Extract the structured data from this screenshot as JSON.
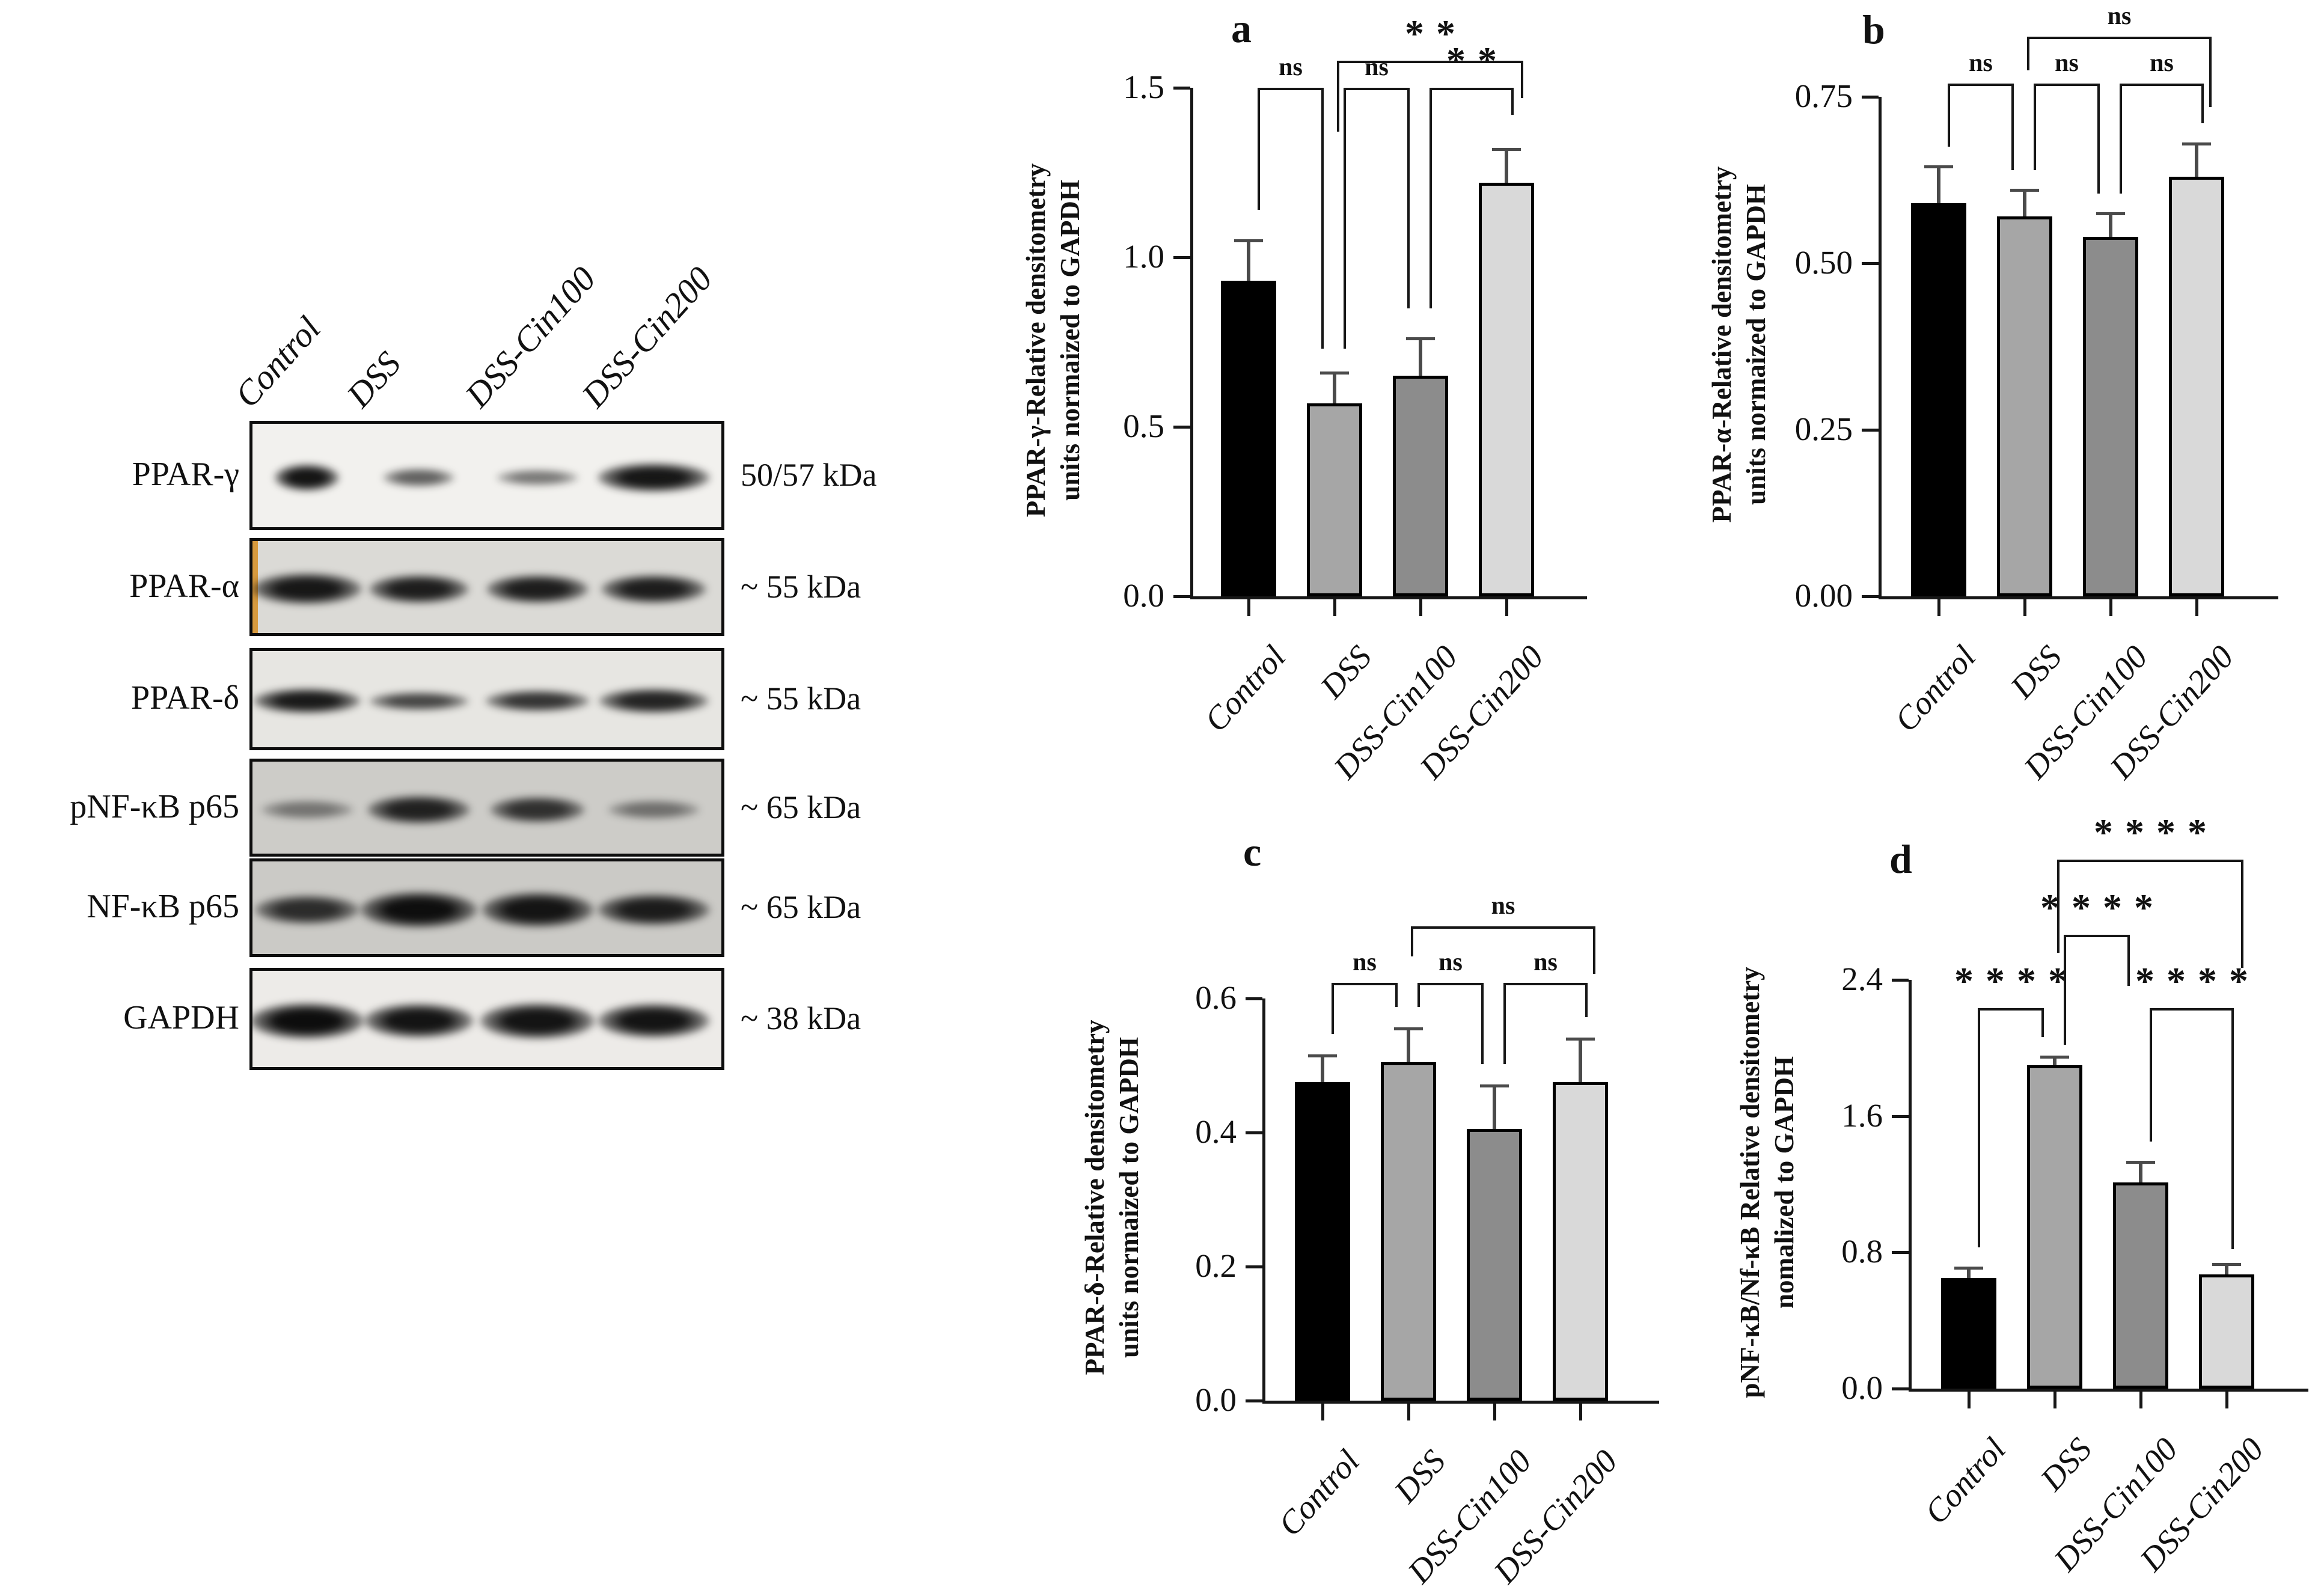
{
  "figure": {
    "background": "#ffffff",
    "axis_color": "#161616",
    "error_bar_color": "#4a4a4a",
    "bar_colors": [
      "#000000",
      "#a6a6a6",
      "#8c8c8c",
      "#d9d9d9"
    ]
  },
  "blot": {
    "lane_labels": [
      "Control",
      "DSS",
      "DSS-Cin100",
      "DSS-Cin200"
    ],
    "rows": [
      {
        "protein": "PPAR-γ",
        "kda": "50/57 kDa",
        "bg": "#f2f1ee",
        "stripe": null,
        "bands": [
          {
            "d": 0.95,
            "w": 0.52,
            "t": 0.4
          },
          {
            "d": 0.62,
            "w": 0.58,
            "t": 0.28
          },
          {
            "d": 0.52,
            "w": 0.66,
            "t": 0.24
          },
          {
            "d": 0.94,
            "w": 0.9,
            "t": 0.44
          }
        ]
      },
      {
        "protein": "PPAR-α",
        "kda": "~ 55 kDa",
        "bg": "#dbdad6",
        "stripe": "#d79a3e",
        "bands": [
          {
            "d": 0.93,
            "w": 0.88,
            "t": 0.52
          },
          {
            "d": 0.9,
            "w": 0.8,
            "t": 0.48
          },
          {
            "d": 0.9,
            "w": 0.82,
            "t": 0.48
          },
          {
            "d": 0.9,
            "w": 0.84,
            "t": 0.48
          }
        ]
      },
      {
        "protein": "PPAR-δ",
        "kda": "~ 55 kDa",
        "bg": "#e7e6e2",
        "stripe": null,
        "bands": [
          {
            "d": 0.92,
            "w": 0.86,
            "t": 0.4
          },
          {
            "d": 0.72,
            "w": 0.8,
            "t": 0.3
          },
          {
            "d": 0.8,
            "w": 0.84,
            "t": 0.34
          },
          {
            "d": 0.88,
            "w": 0.88,
            "t": 0.4
          }
        ]
      },
      {
        "protein": "pNF-κB p65",
        "kda": "~ 65 kDa",
        "bg": "#cdccc8",
        "stripe": null,
        "bands": [
          {
            "d": 0.45,
            "w": 0.74,
            "t": 0.32
          },
          {
            "d": 0.88,
            "w": 0.82,
            "t": 0.48
          },
          {
            "d": 0.8,
            "w": 0.76,
            "t": 0.44
          },
          {
            "d": 0.48,
            "w": 0.74,
            "t": 0.32
          }
        ]
      },
      {
        "protein": "NF-κB p65",
        "kda": "~ 65 kDa",
        "bg": "#cbcac6",
        "stripe": null,
        "bands": [
          {
            "d": 0.82,
            "w": 0.84,
            "t": 0.48
          },
          {
            "d": 0.97,
            "w": 0.94,
            "t": 0.6
          },
          {
            "d": 0.94,
            "w": 0.9,
            "t": 0.58
          },
          {
            "d": 0.9,
            "w": 0.9,
            "t": 0.52
          }
        ]
      },
      {
        "protein": "GAPDH",
        "kda": "~ 38 kDa",
        "bg": "#edebe8",
        "stripe": null,
        "bands": [
          {
            "d": 0.98,
            "w": 0.92,
            "t": 0.58
          },
          {
            "d": 0.95,
            "w": 0.88,
            "t": 0.55
          },
          {
            "d": 0.95,
            "w": 0.92,
            "t": 0.58
          },
          {
            "d": 0.95,
            "w": 0.9,
            "t": 0.55
          }
        ]
      }
    ]
  },
  "chart_data": [
    {
      "id": "a",
      "type": "bar",
      "panel_label": "a",
      "categories": [
        "Control",
        "DSS",
        "DSS-Cin100",
        "DSS-Cin200"
      ],
      "values": [
        0.93,
        0.57,
        0.65,
        1.22
      ],
      "errors": [
        0.12,
        0.09,
        0.11,
        0.1
      ],
      "ylabel_lines": [
        "PPAR-γ-Relative densitometry",
        "units normaized to GAPDH"
      ],
      "ylim": [
        0,
        1.5
      ],
      "yticks": [
        0,
        0.5,
        1.0,
        1.5
      ],
      "ytick_labels": [
        "0.0",
        "0.5",
        "1.0",
        "1.5"
      ],
      "legend": null,
      "grid": false,
      "significance": [
        {
          "i": 0,
          "j": 1,
          "label": "ns",
          "y": 1.5,
          "di": 1.14,
          "dj": 0.73,
          "oi": 15,
          "oj": -18
        },
        {
          "i": 1,
          "j": 2,
          "label": "ns",
          "y": 1.5,
          "di": 0.73,
          "dj": 0.85,
          "oi": 15,
          "oj": -18
        },
        {
          "i": 2,
          "j": 3,
          "label": "**",
          "y": 1.5,
          "di": 0.85,
          "dj": 1.42,
          "oi": 15,
          "oj": 12
        },
        {
          "i": 1,
          "j": 3,
          "label": "**",
          "y": 1.58,
          "di": 1.37,
          "dj": 1.47,
          "oi": 4,
          "oj": 28
        }
      ]
    },
    {
      "id": "b",
      "type": "bar",
      "panel_label": "b",
      "categories": [
        "Control",
        "DSS",
        "DSS-Cin100",
        "DSS-Cin200"
      ],
      "values": [
        0.59,
        0.57,
        0.54,
        0.63
      ],
      "errors": [
        0.055,
        0.04,
        0.035,
        0.05
      ],
      "ylabel_lines": [
        "PPAR-α-Relative densitometry",
        "units normaized to GAPDH"
      ],
      "ylim": [
        0,
        0.75
      ],
      "yticks": [
        0,
        0.25,
        0.5,
        0.75
      ],
      "ytick_labels": [
        "0.00",
        "0.25",
        "0.50",
        "0.75"
      ],
      "legend": null,
      "grid": false,
      "significance": [
        {
          "i": 0,
          "j": 1,
          "label": "ns",
          "y": 0.77,
          "di": 0.675,
          "dj": 0.64,
          "oi": 15,
          "oj": -18
        },
        {
          "i": 1,
          "j": 2,
          "label": "ns",
          "y": 0.77,
          "di": 0.64,
          "dj": 0.605,
          "oi": 15,
          "oj": -18
        },
        {
          "i": 2,
          "j": 3,
          "label": "ns",
          "y": 0.77,
          "di": 0.605,
          "dj": 0.71,
          "oi": 15,
          "oj": 12
        },
        {
          "i": 1,
          "j": 3,
          "label": "ns",
          "y": 0.84,
          "di": 0.79,
          "dj": 0.735,
          "oi": 4,
          "oj": 25
        }
      ]
    },
    {
      "id": "c",
      "type": "bar",
      "panel_label": "c",
      "categories": [
        "Control",
        "DSS",
        "DSS-Cin100",
        "DSS-Cin200"
      ],
      "values": [
        0.475,
        0.505,
        0.405,
        0.475
      ],
      "errors": [
        0.04,
        0.05,
        0.065,
        0.065
      ],
      "ylabel_lines": [
        "PPAR-δ-Relative densitometry",
        "units normaized to GAPDH"
      ],
      "ylim": [
        0,
        0.6
      ],
      "yticks": [
        0,
        0.2,
        0.4,
        0.6
      ],
      "ytick_labels": [
        "0.0",
        "0.2",
        "0.4",
        "0.6"
      ],
      "legend": null,
      "grid": false,
      "significance": [
        {
          "i": 0,
          "j": 1,
          "label": "ns",
          "y": 0.623,
          "di": 0.547,
          "dj": 0.587,
          "oi": 15,
          "oj": -18
        },
        {
          "i": 1,
          "j": 2,
          "label": "ns",
          "y": 0.623,
          "di": 0.587,
          "dj": 0.502,
          "oi": 15,
          "oj": -18
        },
        {
          "i": 2,
          "j": 3,
          "label": "ns",
          "y": 0.623,
          "di": 0.502,
          "dj": 0.572,
          "oi": 15,
          "oj": 12
        },
        {
          "i": 1,
          "j": 3,
          "label": "ns",
          "y": 0.708,
          "di": 0.663,
          "dj": 0.637,
          "oi": 4,
          "oj": 25
        }
      ]
    },
    {
      "id": "d",
      "type": "bar",
      "panel_label": "d",
      "categories": [
        "Control",
        "DSS",
        "DSS-Cin100",
        "DSS-Cin200"
      ],
      "values": [
        0.65,
        1.9,
        1.21,
        0.67
      ],
      "errors": [
        0.06,
        0.05,
        0.12,
        0.06
      ],
      "ylabel_lines": [
        "pNF-κB/Nf-κB Relative densitometry",
        "nomalized to GAPDH"
      ],
      "ylim": [
        0,
        2.4
      ],
      "yticks": [
        0,
        0.8,
        1.6,
        2.4
      ],
      "ytick_labels": [
        "0.0",
        "0.8",
        "1.6",
        "2.4"
      ],
      "legend": null,
      "grid": false,
      "significance": [
        {
          "i": 0,
          "j": 1,
          "label": "****",
          "y": 2.235,
          "di": 0.83,
          "dj": 2.065,
          "oi": 15,
          "oj": -18
        },
        {
          "i": 2,
          "j": 3,
          "label": "****",
          "y": 2.235,
          "di": 1.45,
          "dj": 0.82,
          "oi": 15,
          "oj": 12
        },
        {
          "i": 1,
          "j": 2,
          "label": "****",
          "y": 2.665,
          "di": 2.02,
          "dj": 2.365,
          "oi": 15,
          "oj": -18
        },
        {
          "i": 1,
          "j": 3,
          "label": "****",
          "y": 3.105,
          "di": 2.56,
          "dj": 2.47,
          "oi": 4,
          "oj": 28
        }
      ]
    }
  ]
}
